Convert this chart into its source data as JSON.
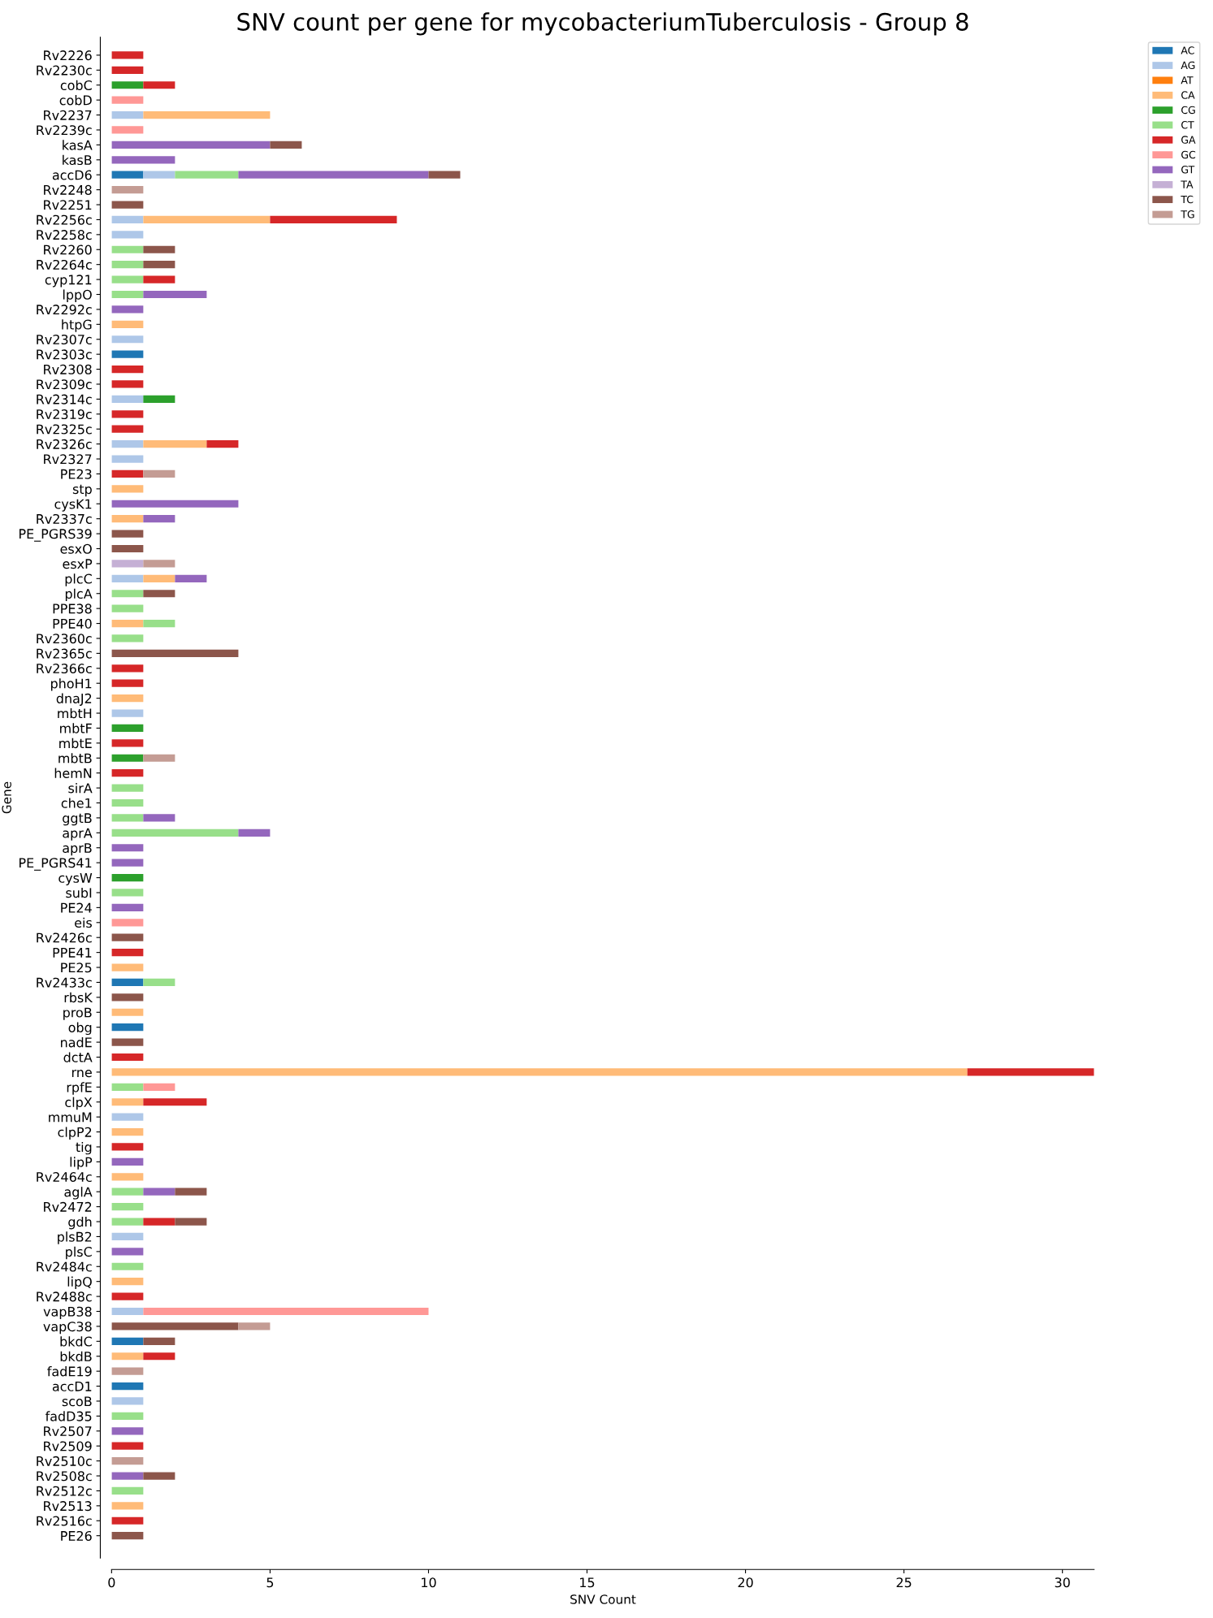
{
  "chart_data": {
    "type": "bar",
    "orientation": "horizontal",
    "stacked": true,
    "title": "SNV count per gene for mycobacteriumTuberculosis - Group 8",
    "xlabel": "SNV Count",
    "ylabel": "Gene",
    "xlim": [
      0,
      31
    ],
    "xticks": [
      0,
      5,
      10,
      15,
      20,
      25,
      30
    ],
    "grid": false,
    "legend": "top right",
    "categories": [
      "Rv2226",
      "Rv2230c",
      "cobC",
      "cobD",
      "Rv2237",
      "Rv2239c",
      "kasA",
      "kasB",
      "accD6",
      "Rv2248",
      "Rv2251",
      "Rv2256c",
      "Rv2258c",
      "Rv2260",
      "Rv2264c",
      "cyp121",
      "lppO",
      "Rv2292c",
      "htpG",
      "Rv2307c",
      "Rv2303c",
      "Rv2308",
      "Rv2309c",
      "Rv2314c",
      "Rv2319c",
      "Rv2325c",
      "Rv2326c",
      "Rv2327",
      "PE23",
      "stp",
      "cysK1",
      "Rv2337c",
      "PE_PGRS39",
      "esxO",
      "esxP",
      "plcC",
      "plcA",
      "PPE38",
      "PPE40",
      "Rv2360c",
      "Rv2365c",
      "Rv2366c",
      "phoH1",
      "dnaJ2",
      "mbtH",
      "mbtF",
      "mbtE",
      "mbtB",
      "hemN",
      "sirA",
      "che1",
      "ggtB",
      "aprA",
      "aprB",
      "PE_PGRS41",
      "cysW",
      "subI",
      "PE24",
      "eis",
      "Rv2426c",
      "PPE41",
      "PE25",
      "Rv2433c",
      "rbsK",
      "proB",
      "obg",
      "nadE",
      "dctA",
      "rne",
      "rpfE",
      "clpX",
      "mmuM",
      "clpP2",
      "tig",
      "lipP",
      "Rv2464c",
      "aglA",
      "Rv2472",
      "gdh",
      "plsB2",
      "plsC",
      "Rv2484c",
      "lipQ",
      "Rv2488c",
      "vapB38",
      "vapC38",
      "bkdC",
      "bkdB",
      "fadE19",
      "accD1",
      "scoB",
      "fadD35",
      "Rv2507",
      "Rv2509",
      "Rv2510c",
      "Rv2508c",
      "Rv2512c",
      "Rv2513",
      "Rv2516c",
      "PE26"
    ],
    "series": [
      {
        "name": "AC",
        "color": "#1f77b4",
        "values": [
          null,
          null,
          null,
          null,
          null,
          null,
          null,
          null,
          1,
          null,
          null,
          null,
          null,
          null,
          null,
          null,
          null,
          null,
          null,
          null,
          1,
          null,
          null,
          null,
          null,
          null,
          null,
          null,
          null,
          null,
          null,
          null,
          null,
          null,
          null,
          null,
          null,
          null,
          null,
          null,
          null,
          null,
          null,
          null,
          null,
          null,
          null,
          null,
          null,
          null,
          null,
          null,
          null,
          null,
          null,
          null,
          null,
          null,
          null,
          null,
          null,
          null,
          1,
          null,
          null,
          1,
          null,
          null,
          null,
          null,
          null,
          null,
          null,
          null,
          null,
          null,
          null,
          null,
          null,
          null,
          null,
          null,
          null,
          null,
          null,
          null,
          1,
          null,
          null,
          1,
          null,
          null,
          null,
          null,
          null,
          null,
          null,
          null,
          null,
          null
        ]
      },
      {
        "name": "AG",
        "color": "#aec7e8",
        "values": [
          null,
          null,
          null,
          null,
          1,
          null,
          null,
          null,
          1,
          null,
          null,
          1,
          1,
          null,
          null,
          null,
          null,
          null,
          null,
          1,
          null,
          null,
          null,
          1,
          null,
          null,
          1,
          1,
          null,
          null,
          null,
          null,
          null,
          null,
          null,
          1,
          null,
          null,
          null,
          null,
          null,
          null,
          null,
          null,
          1,
          null,
          null,
          null,
          null,
          null,
          null,
          null,
          null,
          null,
          null,
          null,
          null,
          null,
          null,
          null,
          null,
          null,
          null,
          null,
          null,
          null,
          null,
          null,
          null,
          null,
          null,
          1,
          null,
          null,
          null,
          null,
          null,
          null,
          null,
          1,
          null,
          null,
          null,
          null,
          1,
          null,
          null,
          null,
          null,
          null,
          1,
          null,
          null,
          null,
          null,
          null,
          null,
          null,
          null,
          null
        ]
      },
      {
        "name": "AT",
        "color": "#ff7f0e",
        "values": [
          null,
          null,
          null,
          null,
          null,
          null,
          null,
          null,
          null,
          null,
          null,
          null,
          null,
          null,
          null,
          null,
          null,
          null,
          null,
          null,
          null,
          null,
          null,
          null,
          null,
          null,
          null,
          null,
          null,
          null,
          null,
          null,
          null,
          null,
          null,
          null,
          null,
          null,
          null,
          null,
          null,
          null,
          null,
          null,
          null,
          null,
          null,
          null,
          null,
          null,
          null,
          null,
          null,
          null,
          null,
          null,
          null,
          null,
          null,
          null,
          null,
          null,
          null,
          null,
          null,
          null,
          null,
          null,
          null,
          null,
          null,
          null,
          null,
          null,
          null,
          null,
          null,
          null,
          null,
          null,
          null,
          null,
          null,
          null,
          null,
          null,
          null,
          null,
          null,
          null,
          null,
          null,
          null,
          null,
          null,
          null,
          null,
          null,
          null,
          null
        ]
      },
      {
        "name": "CA",
        "color": "#ffbb78",
        "values": [
          null,
          null,
          null,
          null,
          4,
          null,
          null,
          null,
          null,
          null,
          null,
          4,
          null,
          null,
          null,
          null,
          null,
          null,
          1,
          null,
          null,
          null,
          null,
          null,
          null,
          null,
          2,
          null,
          null,
          1,
          null,
          1,
          null,
          null,
          null,
          1,
          null,
          null,
          1,
          null,
          null,
          null,
          null,
          1,
          null,
          null,
          null,
          null,
          null,
          null,
          null,
          null,
          null,
          null,
          null,
          null,
          null,
          null,
          null,
          null,
          null,
          1,
          null,
          null,
          1,
          null,
          null,
          null,
          27,
          null,
          1,
          null,
          1,
          null,
          null,
          1,
          null,
          null,
          null,
          null,
          null,
          null,
          1,
          null,
          null,
          null,
          null,
          1,
          null,
          null,
          null,
          null,
          null,
          null,
          null,
          null,
          null,
          1,
          null,
          null
        ]
      },
      {
        "name": "CG",
        "color": "#2ca02c",
        "values": [
          null,
          null,
          1,
          null,
          null,
          null,
          null,
          null,
          null,
          null,
          null,
          null,
          null,
          null,
          null,
          null,
          null,
          null,
          null,
          null,
          null,
          null,
          null,
          1,
          null,
          null,
          null,
          null,
          null,
          null,
          null,
          null,
          null,
          null,
          null,
          null,
          null,
          null,
          null,
          null,
          null,
          null,
          null,
          null,
          null,
          1,
          null,
          1,
          null,
          null,
          null,
          null,
          null,
          null,
          null,
          1,
          null,
          null,
          null,
          null,
          null,
          null,
          null,
          null,
          null,
          null,
          null,
          null,
          null,
          null,
          null,
          null,
          null,
          null,
          null,
          null,
          null,
          null,
          null,
          null,
          null,
          null,
          null,
          null,
          null,
          null,
          null,
          null,
          null,
          null,
          null,
          null,
          null,
          null,
          null,
          null,
          null,
          null,
          null,
          null
        ]
      },
      {
        "name": "CT",
        "color": "#98df8a",
        "values": [
          null,
          null,
          null,
          null,
          null,
          null,
          null,
          null,
          2,
          null,
          null,
          null,
          null,
          1,
          1,
          1,
          1,
          null,
          null,
          null,
          null,
          null,
          null,
          null,
          null,
          null,
          null,
          null,
          null,
          null,
          null,
          null,
          null,
          null,
          null,
          null,
          1,
          1,
          1,
          1,
          null,
          null,
          null,
          null,
          null,
          null,
          null,
          null,
          null,
          1,
          1,
          1,
          4,
          null,
          null,
          null,
          1,
          null,
          null,
          null,
          null,
          null,
          1,
          null,
          null,
          null,
          null,
          null,
          null,
          1,
          null,
          null,
          null,
          null,
          null,
          null,
          1,
          1,
          1,
          null,
          null,
          1,
          null,
          null,
          null,
          null,
          null,
          null,
          null,
          null,
          null,
          1,
          null,
          null,
          null,
          null,
          1,
          null,
          null,
          null
        ]
      },
      {
        "name": "GA",
        "color": "#d62728",
        "values": [
          1,
          1,
          1,
          null,
          null,
          null,
          null,
          null,
          null,
          null,
          null,
          4,
          null,
          null,
          null,
          1,
          null,
          null,
          null,
          null,
          null,
          1,
          1,
          null,
          1,
          1,
          1,
          null,
          1,
          null,
          null,
          null,
          null,
          null,
          null,
          null,
          null,
          null,
          null,
          null,
          null,
          1,
          1,
          null,
          null,
          null,
          1,
          null,
          1,
          null,
          null,
          null,
          null,
          null,
          null,
          null,
          null,
          null,
          null,
          null,
          1,
          null,
          null,
          null,
          null,
          null,
          null,
          1,
          4,
          null,
          2,
          null,
          null,
          1,
          null,
          null,
          null,
          null,
          1,
          null,
          null,
          null,
          null,
          1,
          null,
          null,
          null,
          1,
          null,
          null,
          null,
          null,
          null,
          1,
          null,
          null,
          null,
          null,
          1,
          null
        ]
      },
      {
        "name": "GC",
        "color": "#ff9896",
        "values": [
          null,
          null,
          null,
          1,
          null,
          1,
          null,
          null,
          null,
          null,
          null,
          null,
          null,
          null,
          null,
          null,
          null,
          null,
          null,
          null,
          null,
          null,
          null,
          null,
          null,
          null,
          null,
          null,
          null,
          null,
          null,
          null,
          null,
          null,
          null,
          null,
          null,
          null,
          null,
          null,
          null,
          null,
          null,
          null,
          null,
          null,
          null,
          null,
          null,
          null,
          null,
          null,
          null,
          null,
          null,
          null,
          null,
          null,
          1,
          null,
          null,
          null,
          null,
          null,
          null,
          null,
          null,
          null,
          null,
          1,
          null,
          null,
          null,
          null,
          null,
          null,
          null,
          null,
          null,
          null,
          null,
          null,
          null,
          null,
          9,
          null,
          null,
          null,
          null,
          null,
          null,
          null,
          null,
          null,
          null,
          null,
          null,
          null,
          null,
          null
        ]
      },
      {
        "name": "GT",
        "color": "#9467bd",
        "values": [
          null,
          null,
          null,
          null,
          null,
          null,
          5,
          2,
          6,
          null,
          null,
          null,
          null,
          null,
          null,
          null,
          2,
          1,
          null,
          null,
          null,
          null,
          null,
          null,
          null,
          null,
          null,
          null,
          null,
          null,
          4,
          1,
          null,
          null,
          null,
          1,
          null,
          null,
          null,
          null,
          null,
          null,
          null,
          null,
          null,
          null,
          null,
          null,
          null,
          null,
          null,
          1,
          1,
          1,
          1,
          null,
          null,
          1,
          null,
          null,
          null,
          null,
          null,
          null,
          null,
          null,
          null,
          null,
          null,
          null,
          null,
          null,
          null,
          null,
          1,
          null,
          1,
          null,
          null,
          null,
          1,
          null,
          null,
          null,
          null,
          null,
          null,
          null,
          null,
          null,
          null,
          null,
          1,
          null,
          null,
          1,
          null,
          null,
          null,
          null
        ]
      },
      {
        "name": "TA",
        "color": "#c5b0d5",
        "values": [
          null,
          null,
          null,
          null,
          null,
          null,
          null,
          null,
          null,
          null,
          null,
          null,
          null,
          null,
          null,
          null,
          null,
          null,
          null,
          null,
          null,
          null,
          null,
          null,
          null,
          null,
          null,
          null,
          null,
          null,
          null,
          null,
          null,
          null,
          1,
          null,
          null,
          null,
          null,
          null,
          null,
          null,
          null,
          null,
          null,
          null,
          null,
          null,
          null,
          null,
          null,
          null,
          null,
          null,
          null,
          null,
          null,
          null,
          null,
          null,
          null,
          null,
          null,
          null,
          null,
          null,
          null,
          null,
          null,
          null,
          null,
          null,
          null,
          null,
          null,
          null,
          null,
          null,
          null,
          null,
          null,
          null,
          null,
          null,
          null,
          null,
          null,
          null,
          null,
          null,
          null,
          null,
          null,
          null,
          null,
          null,
          null,
          null,
          null,
          null
        ]
      },
      {
        "name": "TC",
        "color": "#8c564b",
        "values": [
          null,
          null,
          null,
          null,
          null,
          null,
          1,
          null,
          1,
          null,
          1,
          null,
          null,
          1,
          1,
          null,
          null,
          null,
          null,
          null,
          null,
          null,
          null,
          null,
          null,
          null,
          null,
          null,
          null,
          null,
          null,
          null,
          1,
          1,
          null,
          null,
          1,
          null,
          null,
          null,
          4,
          null,
          null,
          null,
          null,
          null,
          null,
          null,
          null,
          null,
          null,
          null,
          null,
          null,
          null,
          null,
          null,
          null,
          null,
          1,
          null,
          null,
          null,
          1,
          null,
          null,
          1,
          null,
          null,
          null,
          null,
          null,
          null,
          null,
          null,
          null,
          1,
          null,
          1,
          null,
          null,
          null,
          null,
          null,
          null,
          4,
          1,
          null,
          null,
          null,
          null,
          null,
          null,
          null,
          null,
          1,
          null,
          null,
          null,
          1
        ]
      },
      {
        "name": "TG",
        "color": "#c49c94",
        "values": [
          null,
          null,
          null,
          null,
          null,
          null,
          null,
          null,
          null,
          1,
          null,
          null,
          null,
          null,
          null,
          null,
          null,
          null,
          null,
          null,
          null,
          null,
          null,
          null,
          null,
          null,
          null,
          null,
          1,
          null,
          null,
          null,
          null,
          null,
          1,
          null,
          null,
          null,
          null,
          null,
          null,
          null,
          null,
          null,
          null,
          null,
          null,
          1,
          null,
          null,
          null,
          null,
          null,
          null,
          null,
          null,
          null,
          null,
          null,
          null,
          null,
          null,
          null,
          null,
          null,
          null,
          null,
          null,
          null,
          null,
          null,
          null,
          null,
          null,
          null,
          null,
          null,
          null,
          null,
          null,
          null,
          null,
          null,
          null,
          null,
          1,
          null,
          null,
          1,
          null,
          null,
          null,
          null,
          null,
          1,
          null,
          null,
          null,
          null,
          null
        ]
      }
    ]
  }
}
